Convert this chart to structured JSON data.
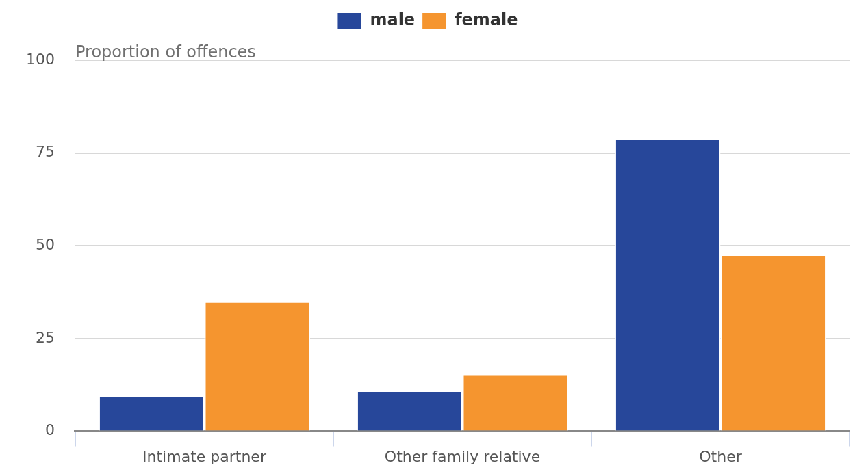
{
  "chart_data": {
    "type": "bar",
    "ylabel": "Proportion of offences",
    "categories": [
      "Intimate partner",
      "Other family relative",
      "Other"
    ],
    "series": [
      {
        "name": "male",
        "color": "#27479a",
        "values": [
          9.5,
          11,
          79
        ]
      },
      {
        "name": "female",
        "color": "#f5952f",
        "values": [
          35,
          15.5,
          47.5
        ]
      }
    ],
    "ylim": [
      0,
      100
    ],
    "yticks": [
      0,
      25,
      50,
      75,
      100
    ],
    "grid": "y",
    "legend": "top"
  }
}
